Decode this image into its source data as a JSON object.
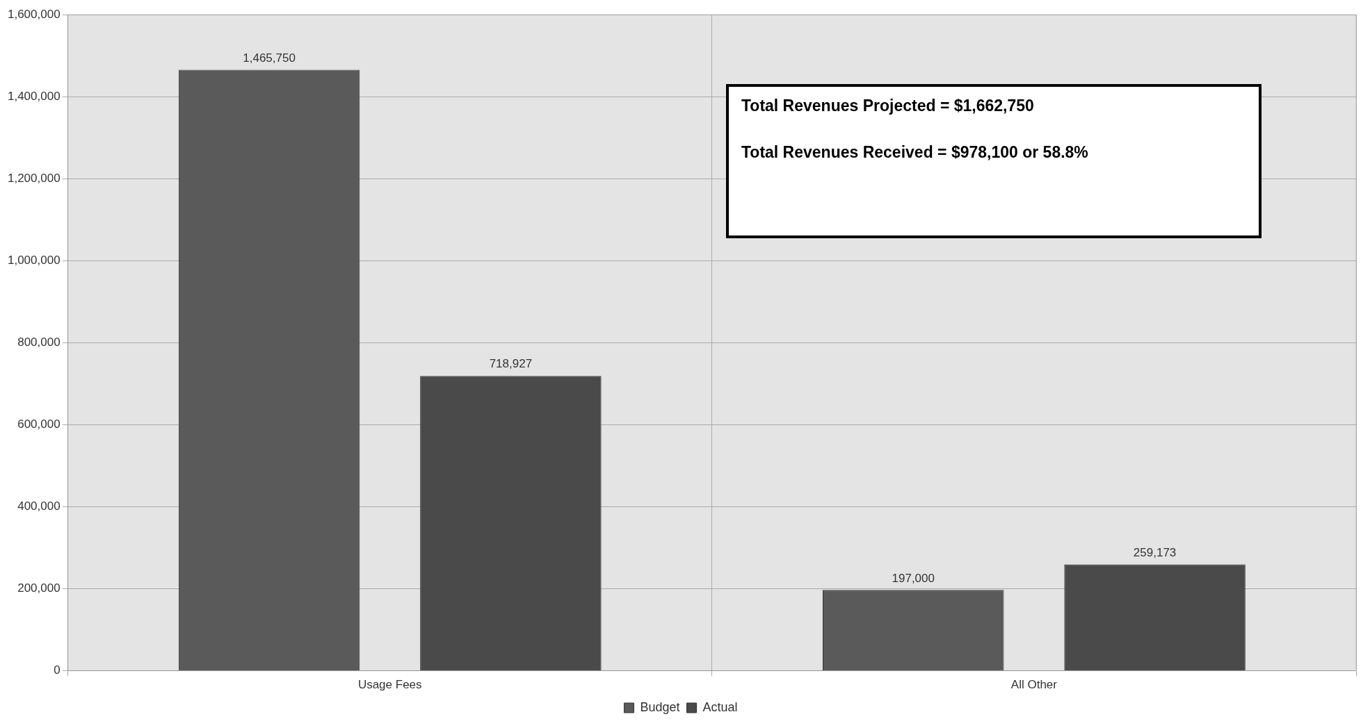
{
  "chart_data": {
    "type": "bar",
    "categories": [
      "Usage Fees",
      "All Other"
    ],
    "series": [
      {
        "name": "Budget",
        "color": "#5a5a5a",
        "values": [
          1465750,
          197000
        ],
        "value_labels": [
          "1,465,750",
          "197,000"
        ]
      },
      {
        "name": "Actual",
        "color": "#4a4a4a",
        "values": [
          718927,
          259173
        ],
        "value_labels": [
          "718,927",
          "259,173"
        ]
      }
    ],
    "ylim": [
      0,
      1600000
    ],
    "yticks": [
      0,
      {
        "value": 200000,
        "label": "200,000"
      },
      {
        "value": 400000,
        "label": "400,000"
      },
      {
        "value": 600000,
        "label": "600,000"
      },
      {
        "value": 800000,
        "label": "800,000"
      },
      {
        "value": 1000000,
        "label": "1,000,000"
      },
      {
        "value": 1200000,
        "label": "1,200,000"
      },
      {
        "value": 1400000,
        "label": "1,400,000"
      },
      {
        "value": 1600000,
        "label": "1,600,000"
      }
    ],
    "grid": true,
    "legend": "bottom",
    "annotations": [
      "Total Revenues Projected = $1,662,750",
      "Total Revenues Received = $978,100 or 58.8%"
    ]
  }
}
